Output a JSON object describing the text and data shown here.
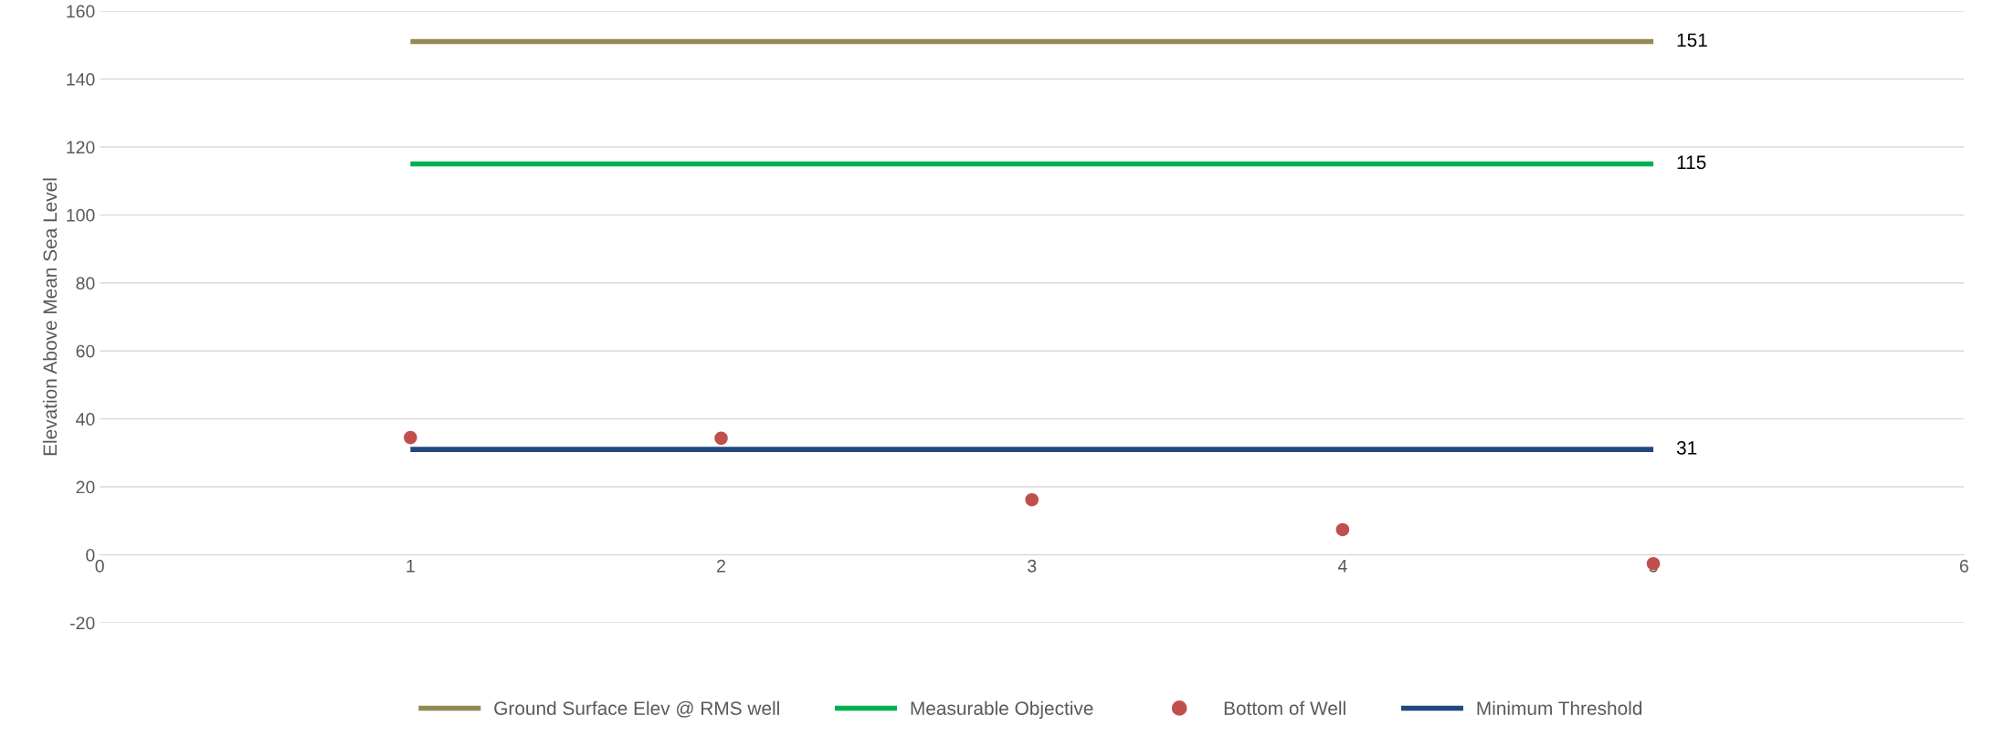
{
  "chart_data": {
    "type": "line",
    "ylabel": "Elevation Above Mean Sea Level",
    "x": [
      1,
      2,
      3,
      4,
      5
    ],
    "series": [
      {
        "name": "Ground Surface Elev @ RMS well",
        "color": "#948a54",
        "values": [
          151,
          151,
          151,
          151,
          151
        ],
        "value_labels": [
          null,
          null,
          null,
          null,
          "151"
        ]
      },
      {
        "name": "Measurable Objective",
        "color": "#00b050",
        "values": [
          115,
          115,
          115,
          115,
          115
        ],
        "value_labels": [
          null,
          null,
          null,
          null,
          "115"
        ]
      },
      {
        "name": "Bottom of Well",
        "color": "#c0504d",
        "type": "scatter",
        "marker": "circle",
        "values": [
          34.5,
          34.3,
          16.2,
          7.4,
          -2.6
        ]
      },
      {
        "name": "Minimum Threshold",
        "color": "#1f497d",
        "values": [
          31,
          31,
          31,
          31,
          31
        ],
        "value_labels": [
          null,
          null,
          null,
          null,
          "31"
        ]
      }
    ],
    "xlim": [
      0,
      6
    ],
    "xticks": [
      0,
      1,
      2,
      3,
      4,
      5,
      6
    ],
    "ylim": [
      -20,
      160
    ],
    "yticks": [
      -20,
      0,
      20,
      40,
      60,
      80,
      100,
      120,
      140,
      160
    ],
    "grid": "y",
    "legend": "bottom"
  }
}
